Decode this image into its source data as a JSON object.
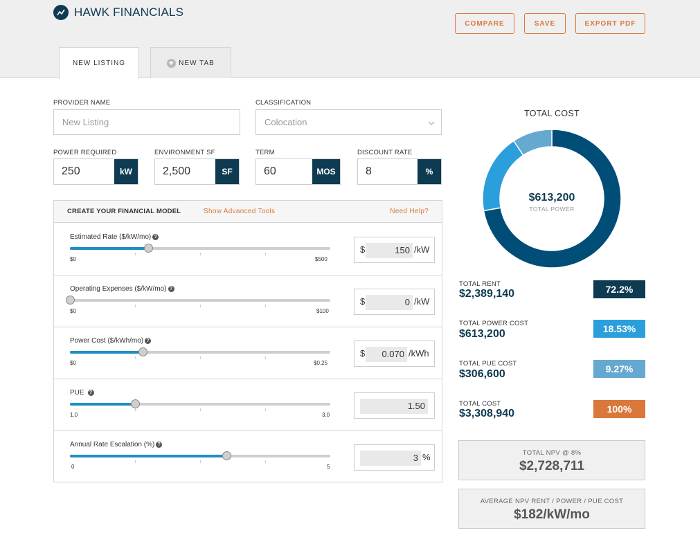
{
  "header": {
    "brand": "HAWK FINANCIALS",
    "buttons": {
      "compare": "COMPARE",
      "save": "SAVE",
      "export": "EXPORT PDF"
    }
  },
  "tabs": [
    {
      "label": "NEW LISTING",
      "active": true
    },
    {
      "label": "NEW TAB",
      "active": false
    }
  ],
  "form": {
    "provider_name": {
      "label": "PROVIDER NAME",
      "placeholder": "New Listing"
    },
    "classification": {
      "label": "CLASSIFICATION",
      "value": "Colocation"
    },
    "power_required": {
      "label": "POWER REQUIRED",
      "value": "250",
      "unit": "kW"
    },
    "environment_sf": {
      "label": "ENVIRONMENT SF",
      "value": "2,500",
      "unit": "SF"
    },
    "term": {
      "label": "TERM",
      "value": "60",
      "unit": "MOS"
    },
    "discount_rate": {
      "label": "DISCOUNT RATE",
      "value": "8",
      "unit": "%"
    }
  },
  "model": {
    "title": "CREATE YOUR FINANCIAL MODEL",
    "advanced_link": "Show Advanced Tools",
    "help_link": "Need Help?",
    "sliders": [
      {
        "label": "Estimated Rate ($/kW/mo)",
        "min_label": "$0",
        "max_label": "$500",
        "fraction": 0.3,
        "prefix": "$",
        "value": "150",
        "unit": "/kW"
      },
      {
        "label": "Operating Expenses ($/kW/mo)",
        "min_label": "$0",
        "max_label": "$100",
        "fraction": 0.0,
        "prefix": "$",
        "value": "0",
        "unit": "/kW"
      },
      {
        "label": "Power Cost ($/kWh/mo)",
        "min_label": "$0",
        "max_label": "$0.25",
        "fraction": 0.28,
        "prefix": "$",
        "value": "0.070",
        "unit": "/kWh"
      },
      {
        "label": "PUE",
        "min_label": "1.0",
        "max_label": "3.0",
        "fraction": 0.25,
        "prefix": "",
        "value": "1.50",
        "unit": ""
      },
      {
        "label": "Annual Rate Escalation (%)",
        "min_label": "0",
        "max_label": "5",
        "fraction": 0.6,
        "prefix": "",
        "value": "3",
        "unit": "%"
      }
    ]
  },
  "summary": {
    "title": "TOTAL COST",
    "center_value": "$613,200",
    "center_label": "TOTAL POWER",
    "donut": [
      {
        "name": "rent",
        "value": 72.2,
        "color": "#004d78"
      },
      {
        "name": "power",
        "value": 18.53,
        "color": "#2a9fdc"
      },
      {
        "name": "pue",
        "value": 9.27,
        "color": "#66a9d0"
      }
    ],
    "stats": [
      {
        "label": "TOTAL RENT",
        "value": "$2,389,140",
        "pct": "72.2%",
        "color": "#0e3a52"
      },
      {
        "label": "TOTAL POWER COST",
        "value": "$613,200",
        "pct": "18.53%",
        "color": "#2a9fdc"
      },
      {
        "label": "TOTAL PUE COST",
        "value": "$306,600",
        "pct": "9.27%",
        "color": "#66a9d0"
      },
      {
        "label": "TOTAL COST",
        "value": "$3,308,940",
        "pct": "100%",
        "color": "#d9783a"
      }
    ],
    "npv": {
      "label": "TOTAL NPV @ 8%",
      "value": "$2,728,711"
    },
    "avg_npv": {
      "label": "AVERAGE NPV RENT / POWER / PUE COST",
      "value": "$182/kW/mo"
    }
  }
}
